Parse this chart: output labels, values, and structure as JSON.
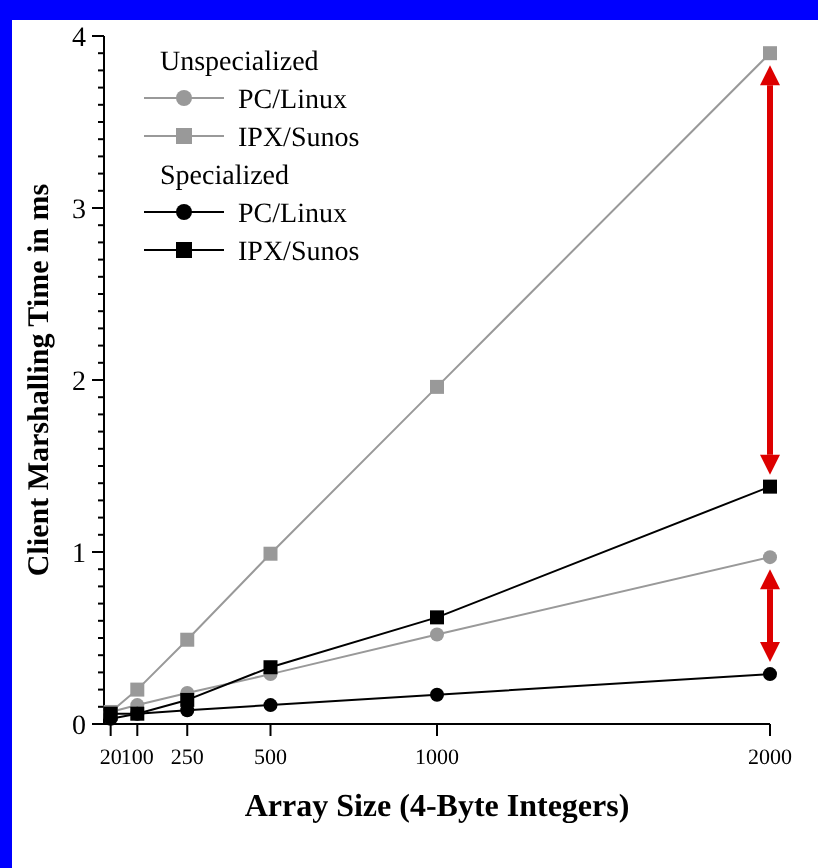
{
  "chart_data": {
    "type": "line",
    "xlabel": "Array Size (4-Byte Integers)",
    "ylabel": "Client Marshalling Time in ms",
    "x": [
      20,
      100,
      250,
      500,
      1000,
      2000
    ],
    "xlim": [
      0,
      2000
    ],
    "xticks": [
      20,
      100,
      250,
      500,
      1000,
      2000
    ],
    "ylim": [
      0,
      4
    ],
    "yticks": [
      0,
      {
        "value": 0.1,
        "label": null
      },
      {
        "value": 0.2,
        "label": null
      },
      {
        "value": 0.3,
        "label": null
      },
      {
        "value": 0.4,
        "label": null
      },
      {
        "value": 0.5,
        "label": null
      },
      {
        "value": 0.6,
        "label": null
      },
      {
        "value": 0.7,
        "label": null
      },
      {
        "value": 0.8,
        "label": null
      },
      {
        "value": 0.9,
        "label": null
      },
      1,
      {
        "value": 1.1,
        "label": null
      },
      {
        "value": 1.2,
        "label": null
      },
      {
        "value": 1.3,
        "label": null
      },
      {
        "value": 1.4,
        "label": null
      },
      {
        "value": 1.5,
        "label": null
      },
      {
        "value": 1.6,
        "label": null
      },
      {
        "value": 1.7,
        "label": null
      },
      {
        "value": 1.8,
        "label": null
      },
      {
        "value": 1.9,
        "label": null
      },
      2,
      {
        "value": 2.1,
        "label": null
      },
      {
        "value": 2.2,
        "label": null
      },
      {
        "value": 2.3,
        "label": null
      },
      {
        "value": 2.4,
        "label": null
      },
      {
        "value": 2.5,
        "label": null
      },
      {
        "value": 2.6,
        "label": null
      },
      {
        "value": 2.7,
        "label": null
      },
      {
        "value": 2.8,
        "label": null
      },
      {
        "value": 2.9,
        "label": null
      },
      3,
      {
        "value": 3.1,
        "label": null
      },
      {
        "value": 3.2,
        "label": null
      },
      {
        "value": 3.3,
        "label": null
      },
      {
        "value": 3.4,
        "label": null
      },
      {
        "value": 3.5,
        "label": null
      },
      {
        "value": 3.6,
        "label": null
      },
      {
        "value": 3.7,
        "label": null
      },
      {
        "value": 3.8,
        "label": null
      },
      {
        "value": 3.9,
        "label": null
      },
      4
    ],
    "grid": false,
    "legend": "top left",
    "line_style": "solid",
    "annotations": [
      "Unspecialized",
      "Specialized"
    ],
    "series": [
      {
        "name": "PC/Linux",
        "color": "#999999",
        "marker": "circle",
        "values": [
          0.07,
          0.11,
          0.18,
          0.29,
          0.52,
          0.97
        ]
      },
      {
        "name": "IPX/Sunos",
        "color": "#999999",
        "marker": "square",
        "values": [
          0.07,
          0.2,
          0.49,
          0.99,
          1.96,
          3.9
        ]
      },
      {
        "name": "PC/Linux",
        "color": "#000000",
        "marker": "circle",
        "values": [
          0.03,
          0.06,
          0.08,
          0.11,
          0.17,
          0.29
        ]
      },
      {
        "name": "IPX/Sunos",
        "color": "#000000",
        "marker": "square",
        "values": [
          0.06,
          0.06,
          0.14,
          0.33,
          0.62,
          1.38
        ]
      }
    ]
  }
}
